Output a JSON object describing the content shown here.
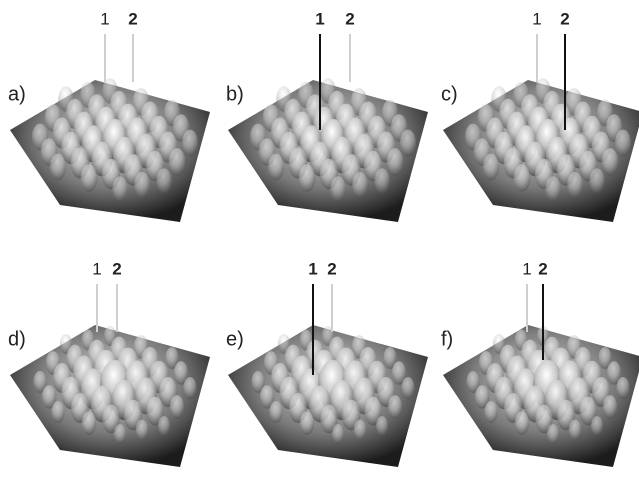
{
  "panels": [
    {
      "label": "a)",
      "markers": [
        "1",
        "2"
      ]
    },
    {
      "label": "b)",
      "markers": [
        "1",
        "2"
      ]
    },
    {
      "label": "c)",
      "markers": [
        "1",
        "2"
      ]
    },
    {
      "label": "d)",
      "markers": [
        "1",
        "2"
      ]
    },
    {
      "label": "e)",
      "markers": [
        "1",
        "2"
      ]
    },
    {
      "label": "f)",
      "markers": [
        "1",
        "2"
      ]
    }
  ]
}
